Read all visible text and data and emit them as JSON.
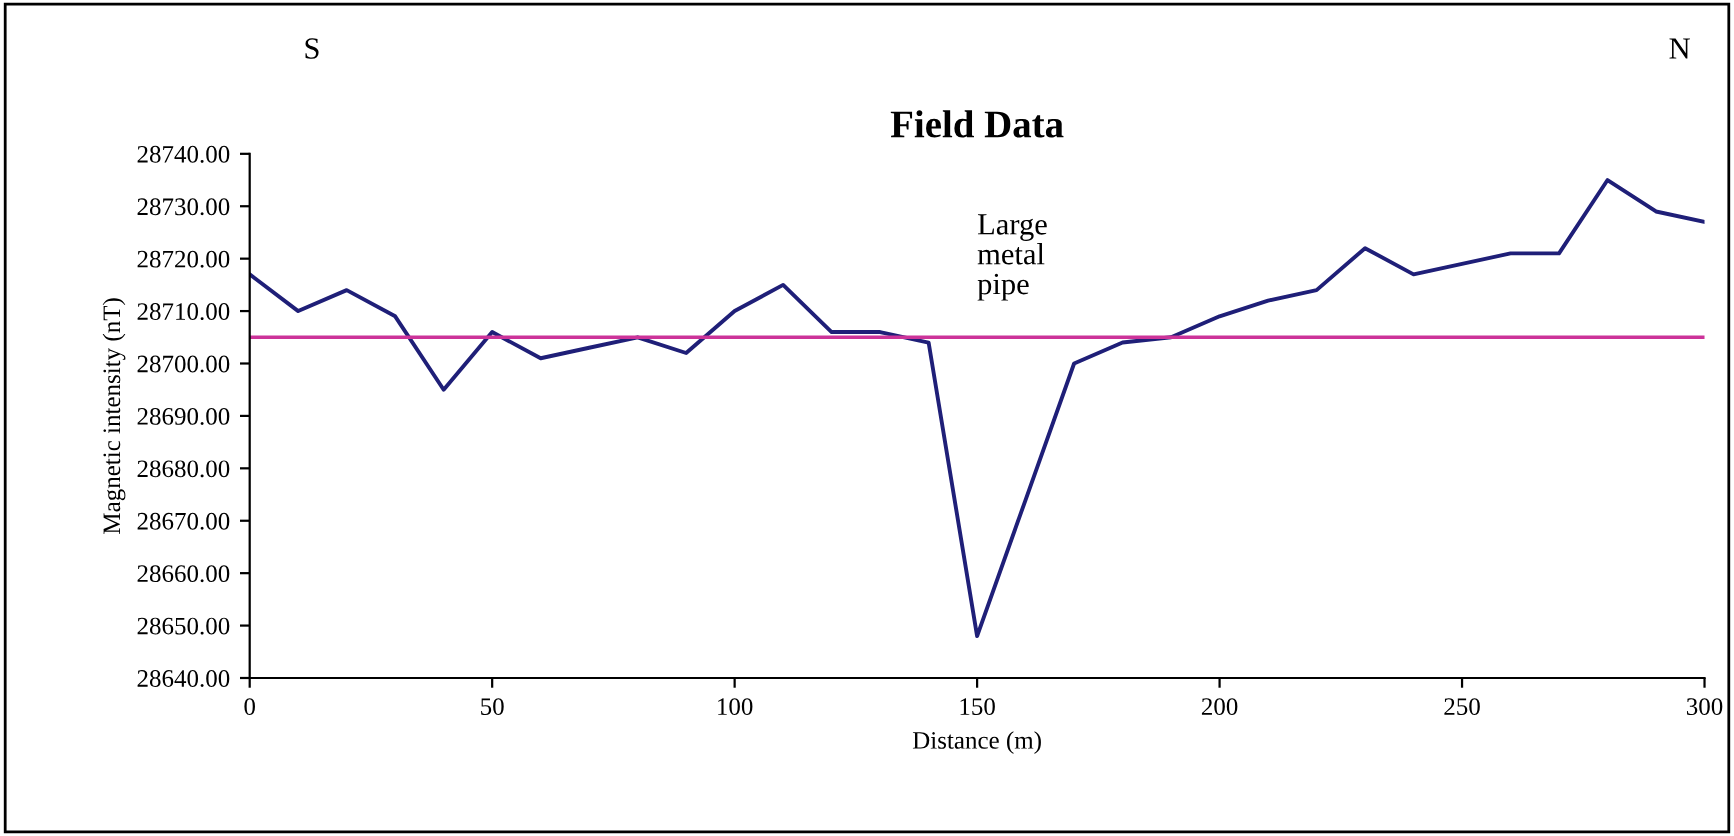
{
  "chart_data": {
    "type": "line",
    "title": "Field Data",
    "xlabel": "Distance (m)",
    "ylabel": "Magnetic intensity (nT)",
    "x": [
      0,
      10,
      20,
      30,
      40,
      50,
      60,
      70,
      80,
      90,
      100,
      110,
      120,
      130,
      140,
      150,
      160,
      170,
      180,
      190,
      200,
      210,
      220,
      230,
      240,
      250,
      260,
      270,
      280,
      290,
      300
    ],
    "series": [
      {
        "color": "#1f1f78",
        "values": [
          28717,
          28710,
          28714,
          28709,
          28695,
          28706,
          28701,
          28703,
          28705,
          28702,
          28710,
          28715,
          28706,
          28706,
          28704,
          28648,
          28674,
          28700,
          28704,
          28705,
          28709,
          28712,
          28714,
          28722,
          28717,
          28719,
          28721,
          28721,
          28735,
          28729,
          28727
        ]
      }
    ],
    "xlim": [
      0,
      300
    ],
    "xticks": [
      0,
      50,
      100,
      150,
      200,
      250,
      300
    ],
    "ylim": [
      28640,
      28740
    ],
    "yticks": [
      {
        "value": 28640,
        "label": "28640.00"
      },
      {
        "value": 28650,
        "label": "28650.00"
      },
      {
        "value": 28660,
        "label": "28660.00"
      },
      {
        "value": 28670,
        "label": "28670.00"
      },
      {
        "value": 28680,
        "label": "28680.00"
      },
      {
        "value": 28690,
        "label": "28690.00"
      },
      {
        "value": 28700,
        "label": "28700.00"
      },
      {
        "value": 28710,
        "label": "28710.00"
      },
      {
        "value": 28720,
        "label": "28720.00"
      },
      {
        "value": 28730,
        "label": "28730.00"
      },
      {
        "value": 28740,
        "label": "28740.00"
      }
    ],
    "ref_lines": [
      {
        "axis": "y",
        "value": 28705,
        "color": "#cc3399"
      }
    ],
    "annotations": [
      "S",
      "N",
      "Large\nmetal\npipe"
    ],
    "grid": false,
    "legend": false,
    "marker": "none",
    "line_style": "solid"
  }
}
